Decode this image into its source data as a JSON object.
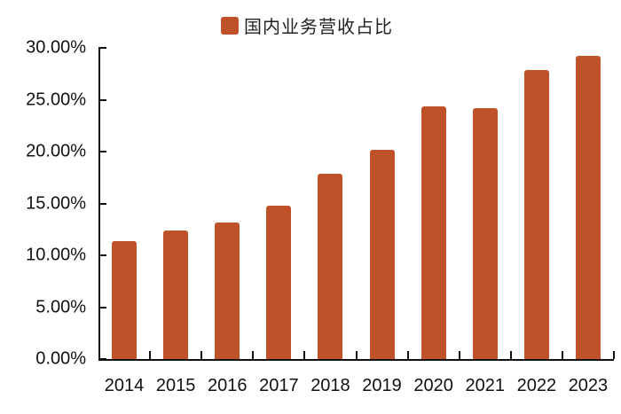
{
  "chart_data": {
    "type": "bar",
    "title": "",
    "xlabel": "",
    "ylabel": "",
    "categories": [
      "2014",
      "2015",
      "2016",
      "2017",
      "2018",
      "2019",
      "2020",
      "2021",
      "2022",
      "2023"
    ],
    "series": [
      {
        "name": "国内业务营收占比",
        "values": [
          11.4,
          12.4,
          13.2,
          14.8,
          17.9,
          20.2,
          24.4,
          24.2,
          27.9,
          29.2
        ],
        "color": "#c0522a"
      }
    ],
    "ylim": [
      0,
      30
    ],
    "yticks": [
      "0.00%",
      "5.00%",
      "10.00%",
      "15.00%",
      "20.00%",
      "25.00%",
      "30.00%"
    ],
    "grid": false,
    "legend_position": "top"
  },
  "legend": {
    "label": "国内业务营收占比",
    "color": "#c0522a"
  }
}
